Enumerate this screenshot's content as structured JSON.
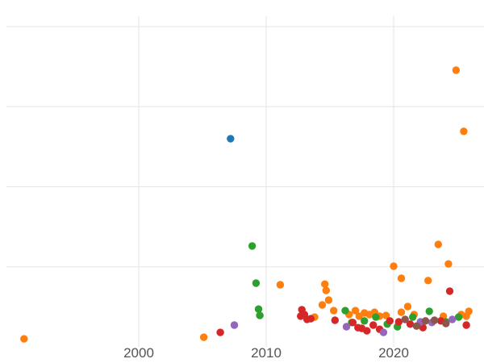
{
  "chart_data": {
    "type": "scatter",
    "title": "",
    "xlabel": "",
    "ylabel": "",
    "x_ticks": [
      2000,
      2010,
      2020
    ],
    "x_tick_labels": [
      "2000",
      "2010",
      "2020"
    ],
    "y_gridline_values": [
      25,
      50,
      75,
      100
    ],
    "xlim": [
      1989.6,
      2027.1
    ],
    "ylim": [
      0,
      100
    ],
    "grid": true,
    "legend": "none",
    "background_color": "#ffffff",
    "gridline_color": "#e6e6e6",
    "tick_label_color": "#545454",
    "marker": {
      "radius_px": 4.7
    },
    "series": [
      {
        "name": "blue",
        "color": "#1f77b4",
        "points": [
          [
            2007.2,
            65.0
          ]
        ]
      },
      {
        "name": "orange",
        "color": "#ff7f0e",
        "points": [
          [
            1991.0,
            2.5
          ],
          [
            2005.1,
            3.0
          ],
          [
            2011.1,
            19.4
          ],
          [
            2013.8,
            9.3
          ],
          [
            2014.4,
            13.1
          ],
          [
            2014.6,
            19.6
          ],
          [
            2014.7,
            17.6
          ],
          [
            2014.9,
            14.6
          ],
          [
            2015.3,
            11.3
          ],
          [
            2016.5,
            10.1
          ],
          [
            2017.0,
            11.3
          ],
          [
            2017.3,
            9.6
          ],
          [
            2017.7,
            10.6
          ],
          [
            2018.1,
            10.1
          ],
          [
            2018.5,
            10.8
          ],
          [
            2018.9,
            9.6
          ],
          [
            2019.4,
            9.8
          ],
          [
            2020.0,
            25.2
          ],
          [
            2020.6,
            21.4
          ],
          [
            2020.6,
            10.8
          ],
          [
            2021.1,
            12.6
          ],
          [
            2021.6,
            10.1
          ],
          [
            2022.7,
            20.7
          ],
          [
            2023.5,
            32.0
          ],
          [
            2023.9,
            9.6
          ],
          [
            2024.3,
            25.9
          ],
          [
            2024.9,
            86.4
          ],
          [
            2025.3,
            10.1
          ],
          [
            2025.5,
            67.3
          ],
          [
            2025.7,
            9.6
          ],
          [
            2025.9,
            11.1
          ]
        ]
      },
      {
        "name": "green",
        "color": "#2ca02c",
        "points": [
          [
            2008.9,
            31.5
          ],
          [
            2009.2,
            19.9
          ],
          [
            2009.4,
            11.8
          ],
          [
            2009.5,
            9.8
          ],
          [
            2016.2,
            11.3
          ],
          [
            2016.7,
            7.6
          ],
          [
            2017.7,
            8.1
          ],
          [
            2018.6,
            9.3
          ],
          [
            2019.5,
            7.1
          ],
          [
            2020.3,
            6.3
          ],
          [
            2021.5,
            9.3
          ],
          [
            2022.8,
            11.1
          ],
          [
            2024.1,
            7.8
          ],
          [
            2025.1,
            9.3
          ]
        ]
      },
      {
        "name": "red",
        "color": "#d62728",
        "points": [
          [
            2006.4,
            4.5
          ],
          [
            2012.7,
            9.6
          ],
          [
            2012.8,
            11.6
          ],
          [
            2013.0,
            10.1
          ],
          [
            2013.2,
            8.6
          ],
          [
            2013.5,
            8.8
          ],
          [
            2015.4,
            8.3
          ],
          [
            2016.8,
            7.6
          ],
          [
            2017.2,
            6.0
          ],
          [
            2017.5,
            5.8
          ],
          [
            2017.9,
            5.0
          ],
          [
            2018.4,
            6.8
          ],
          [
            2018.9,
            5.5
          ],
          [
            2019.7,
            8.1
          ],
          [
            2020.4,
            7.8
          ],
          [
            2021.3,
            7.1
          ],
          [
            2022.3,
            6.0
          ],
          [
            2023.7,
            8.1
          ],
          [
            2024.4,
            17.4
          ],
          [
            2025.7,
            6.8
          ]
        ]
      },
      {
        "name": "purple",
        "color": "#9467bd",
        "points": [
          [
            2007.5,
            6.8
          ],
          [
            2016.3,
            6.3
          ],
          [
            2019.2,
            4.5
          ],
          [
            2022.1,
            7.8
          ],
          [
            2023.0,
            7.6
          ],
          [
            2024.6,
            8.6
          ]
        ]
      },
      {
        "name": "brown",
        "color": "#8c564b",
        "points": [
          [
            2020.9,
            8.6
          ],
          [
            2021.8,
            6.5
          ],
          [
            2022.5,
            8.1
          ],
          [
            2023.2,
            8.3
          ],
          [
            2024.1,
            7.3
          ]
        ]
      }
    ]
  }
}
